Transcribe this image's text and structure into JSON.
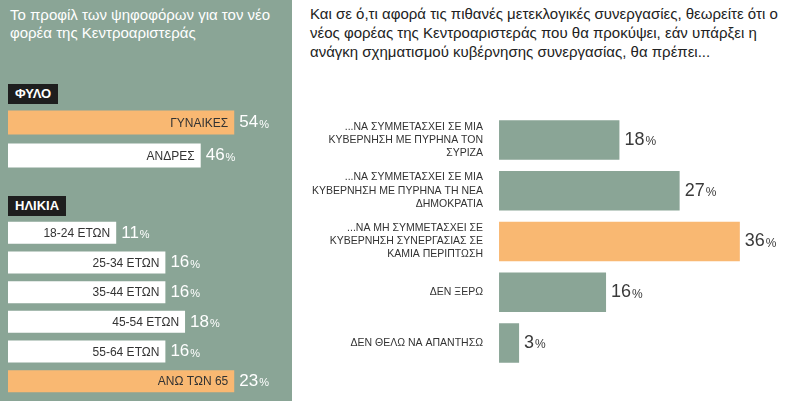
{
  "chart_data": [
    {
      "type": "bar",
      "orientation": "horizontal",
      "title": "Το προφίλ των ψηφοφόρων για τον νέο φορέα της Κεντροαριστεράς",
      "subtitle": "ΦΥΛΟ",
      "categories": [
        "ΓΥΝΑΙΚΕΣ",
        "ΑΝΔΡΕΣ"
      ],
      "values": [
        54,
        46
      ],
      "value_labels": [
        "54%",
        "46%"
      ],
      "colors": [
        "#f9b872",
        "#ffffff"
      ],
      "data_labels": true,
      "tick_labels": false,
      "grid": false
    },
    {
      "type": "bar",
      "orientation": "horizontal",
      "subtitle": "ΗΛΙΚΙΑ",
      "categories": [
        "18-24 ΕΤΩΝ",
        "25-34 ΕΤΩΝ",
        "35-44 ΕΤΩΝ",
        "45-54 ΕΤΩΝ",
        "55-64 ΕΤΩΝ",
        "ΑΝΩ ΤΩΝ 65"
      ],
      "values": [
        11,
        16,
        16,
        18,
        16,
        23
      ],
      "value_labels": [
        "11%",
        "16%",
        "16%",
        "18%",
        "16%",
        "23%"
      ],
      "colors": [
        "#ffffff",
        "#ffffff",
        "#ffffff",
        "#ffffff",
        "#ffffff",
        "#f9b872"
      ],
      "data_labels": true,
      "tick_labels": false,
      "grid": false
    },
    {
      "type": "bar",
      "orientation": "horizontal",
      "title": "Και σε ό,τι αφορά τις πιθανές μετεκλογικές συνεργασίες, θεωρείτε ότι ο νέος φορέας της Κεντροαριστεράς που θα προκύψει, εάν υπάρξει η ανάγκη σχηματισμού κυβέρνησης συνεργασίας, θα πρέπει...",
      "categories": [
        "...ΝΑ ΣΥΜΜΕΤΑΣΧΕΙ ΣΕ ΜΙΑ ΚΥΒΕΡΝΗΣΗ ΜΕ ΠΥΡΗΝΑ ΤΟΝ ΣΥΡΙΖΑ",
        "...ΝΑ ΣΥΜΜΕΤΑΣΧΕΙ ΣΕ ΜΙΑ ΚΥΒΕΡΝΗΣΗ ΜΕ ΠΥΡΗΝΑ ΤΗ ΝΕΑ ΔΗΜΟΚΡΑΤΙΑ",
        "...ΝΑ ΜΗ ΣΥΜΜΕΤΑΣΧΕΙ ΣΕ ΚΥΒΕΡΝΗΣΗ ΣΥΝΕΡΓΑΣΙΑΣ ΣΕ ΚΑΜΙΑ ΠΕΡΙΠΤΩΣΗ",
        "ΔΕΝ ΞΕΡΩ",
        "ΔΕΝ ΘΕΛΩ ΝΑ ΑΠΑΝΤΗΣΩ"
      ],
      "values": [
        18,
        27,
        36,
        16,
        3
      ],
      "value_labels": [
        "18%",
        "27%",
        "36%",
        "16%",
        "3%"
      ],
      "colors": [
        "#8aa596",
        "#8aa596",
        "#f9b872",
        "#8aa596",
        "#8aa596"
      ],
      "data_labels": true,
      "tick_labels": "y",
      "grid": false
    }
  ]
}
